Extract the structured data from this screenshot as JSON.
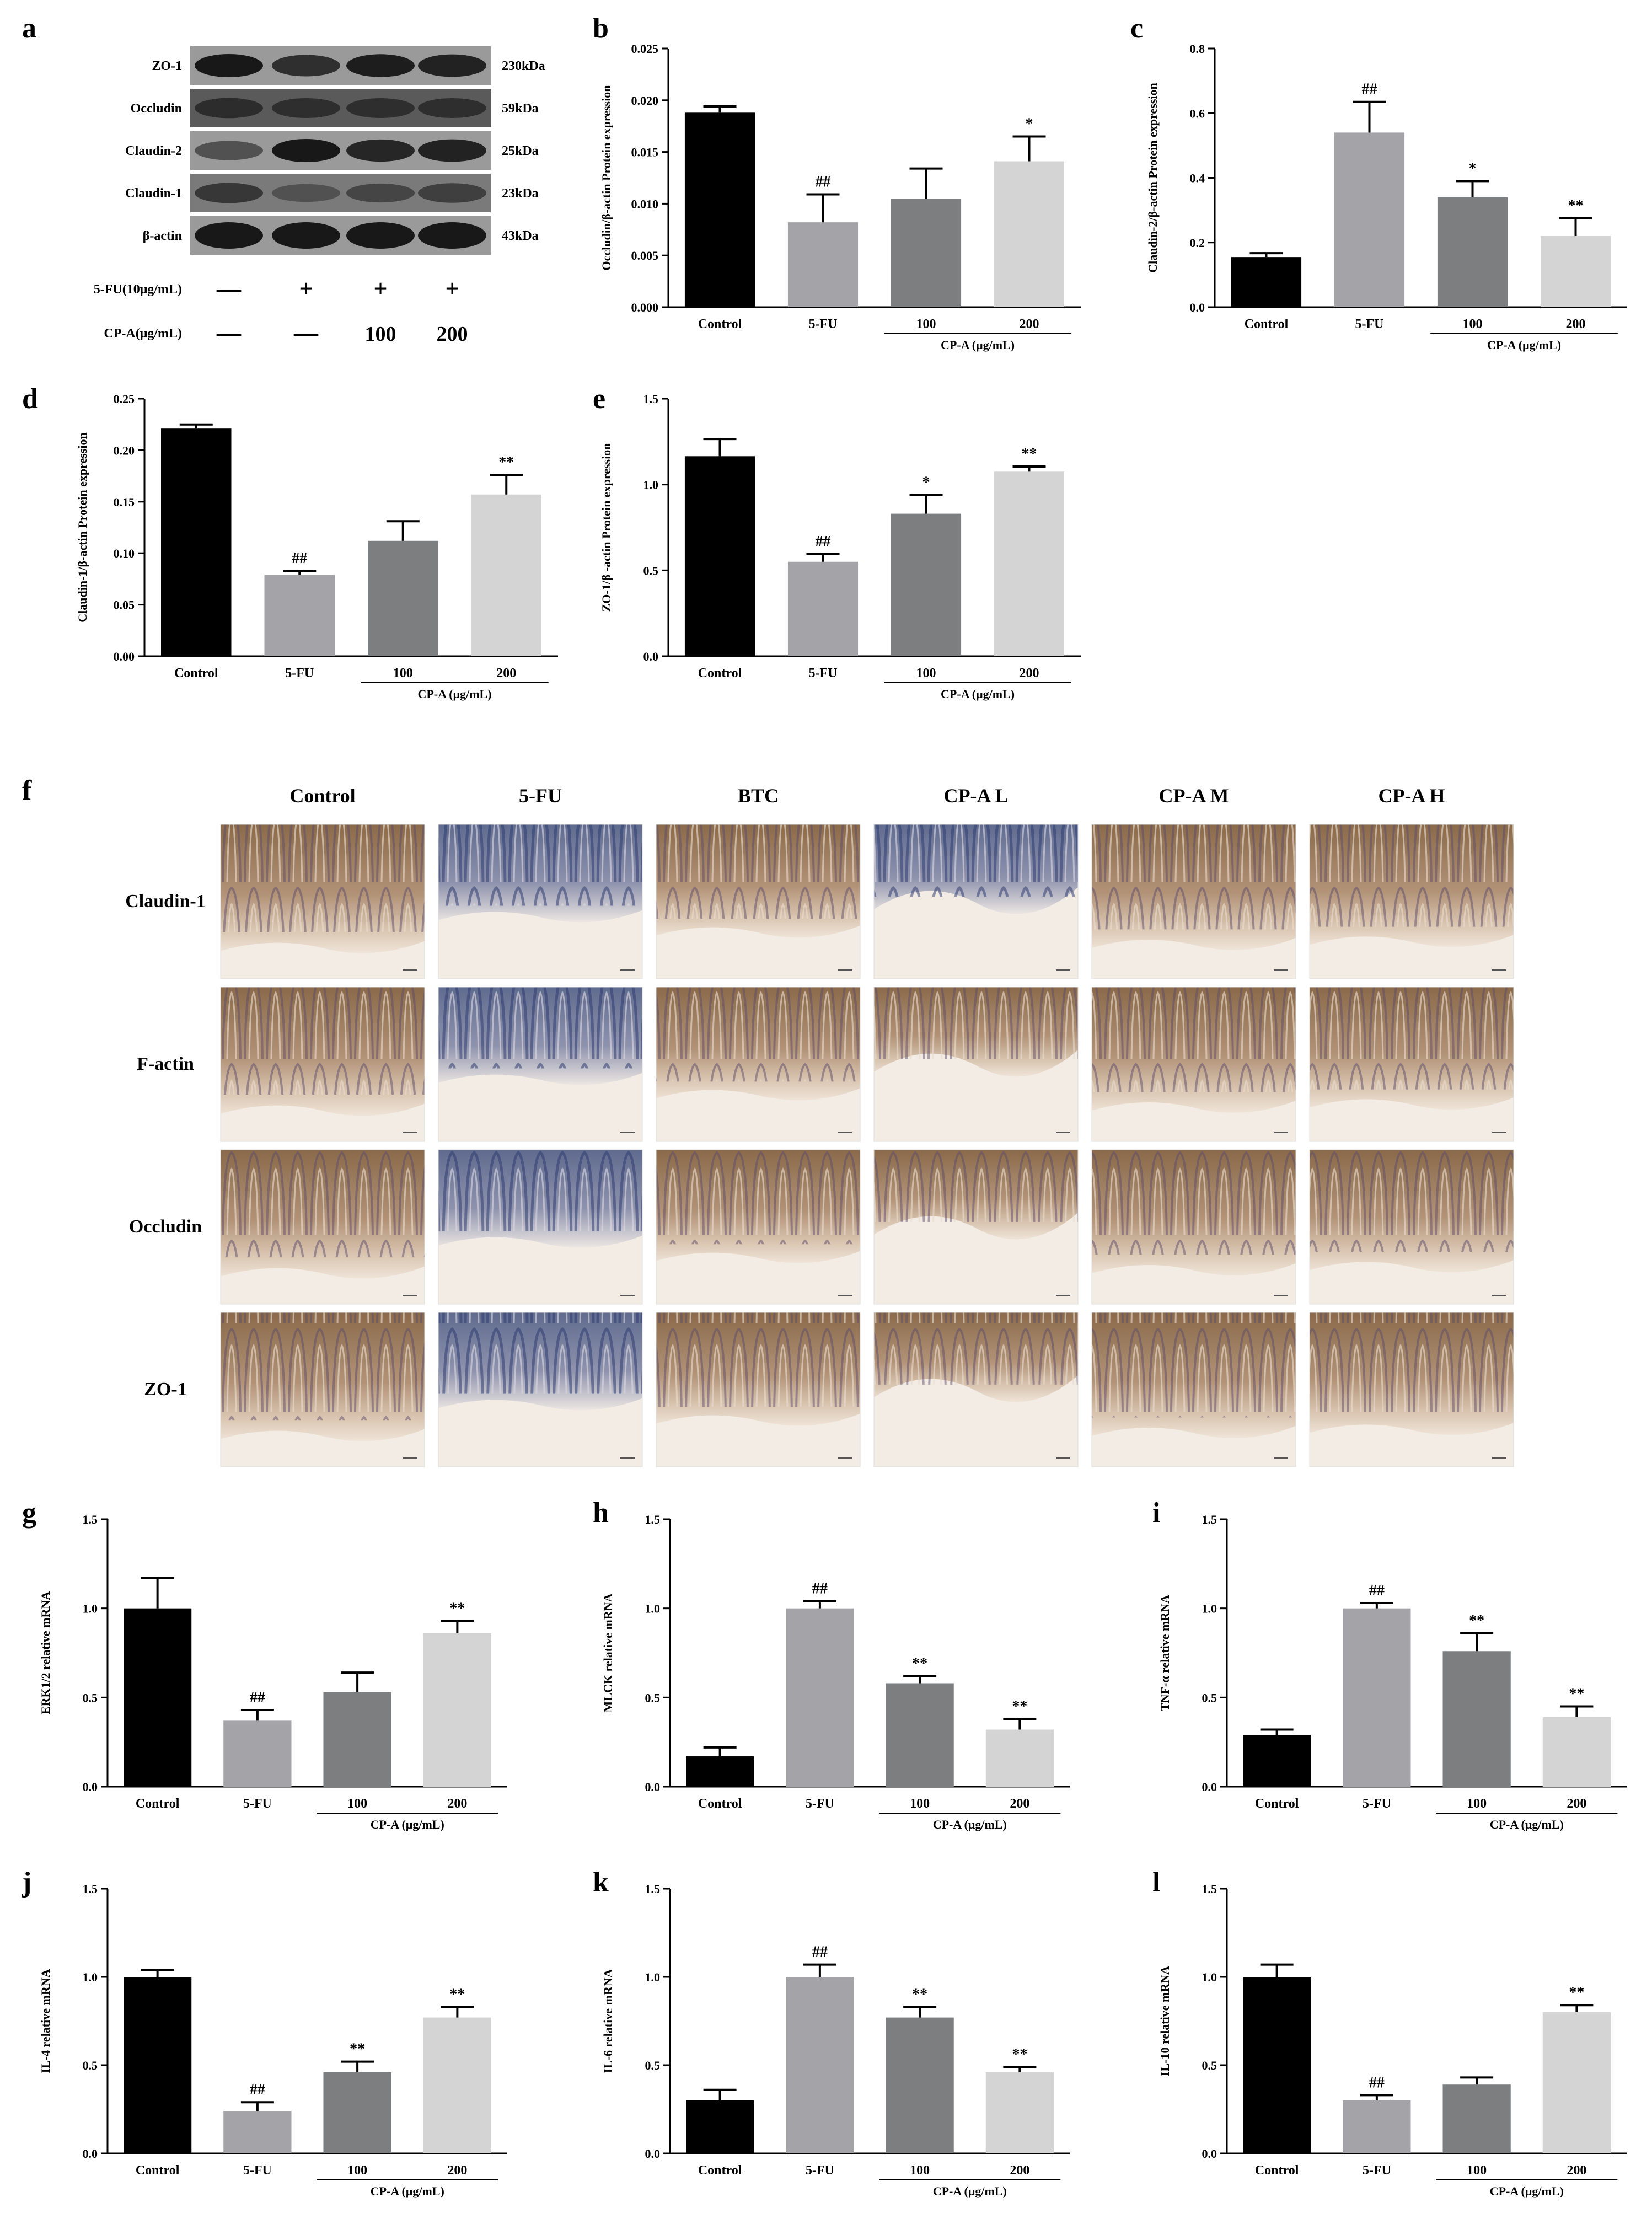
{
  "colors": {
    "control": "#000000",
    "fu": "#a4a3a7",
    "cp100": "#7c7e80",
    "cp200": "#d4d4d4"
  },
  "panel_a": {
    "letter": "a",
    "bands": [
      {
        "name": "ZO-1",
        "kda": "230kDa"
      },
      {
        "name": "Occludin",
        "kda": "59kDa"
      },
      {
        "name": "Claudin-2",
        "kda": "25kDa"
      },
      {
        "name": "Claudin-1",
        "kda": "23kDa"
      },
      {
        "name": "β-actin",
        "kda": "43kDa"
      }
    ],
    "treatment_rows": [
      {
        "label": "5-FU(10μg/mL)",
        "marks": [
          "—",
          "+",
          "+",
          "+"
        ]
      },
      {
        "label": "CP-A(μg/mL)",
        "marks": [
          "—",
          "—",
          "100",
          "200"
        ]
      }
    ]
  },
  "panel_f": {
    "letter": "f",
    "columns": [
      "Control",
      "5-FU",
      "BTC",
      "CP-A L",
      "CP-A M",
      "CP-A H"
    ],
    "rows": [
      "Claudin-1",
      "F-actin",
      "Occludin",
      "ZO-1"
    ]
  },
  "chart_data": [
    {
      "letter": "b",
      "type": "bar",
      "ylabel": "Occludin/β-actin Protein expression",
      "ylim": [
        0,
        0.025
      ],
      "ticks": [
        "0.000",
        "0.005",
        "0.010",
        "0.015",
        "0.020",
        "0.025"
      ],
      "categories": [
        "Control",
        "5-FU",
        "100",
        "200"
      ],
      "group_label": "CP-A (μg/mL)",
      "values": [
        0.0188,
        0.0082,
        0.0105,
        0.0141
      ],
      "errors": [
        0.0006,
        0.0027,
        0.0029,
        0.0024
      ],
      "sig": [
        "",
        "##",
        "",
        "*"
      ]
    },
    {
      "letter": "c",
      "type": "bar",
      "ylabel": "Claudin-2/β-actin Protein expression",
      "ylim": [
        0,
        0.8
      ],
      "ticks": [
        "0.0",
        "0.2",
        "0.4",
        "0.6",
        "0.8"
      ],
      "categories": [
        "Control",
        "5-FU",
        "100",
        "200"
      ],
      "group_label": "CP-A (μg/mL)",
      "values": [
        0.155,
        0.54,
        0.34,
        0.22
      ],
      "errors": [
        0.012,
        0.095,
        0.05,
        0.055
      ],
      "sig": [
        "",
        "##",
        "*",
        "**"
      ]
    },
    {
      "letter": "d",
      "type": "bar",
      "ylabel": "Claudin-1/β-actin Protein expression",
      "ylim": [
        0,
        0.25
      ],
      "ticks": [
        "0.00",
        "0.05",
        "0.10",
        "0.15",
        "0.20",
        "0.25"
      ],
      "categories": [
        "Control",
        "5-FU",
        "100",
        "200"
      ],
      "group_label": "CP-A (μg/mL)",
      "values": [
        0.221,
        0.079,
        0.112,
        0.157
      ],
      "errors": [
        0.004,
        0.004,
        0.019,
        0.019
      ],
      "sig": [
        "",
        "##",
        "",
        "**"
      ]
    },
    {
      "letter": "e",
      "type": "bar",
      "ylabel": "ZO-1/β -actin Protein expression",
      "ylim": [
        0,
        1.5
      ],
      "ticks": [
        "0.0",
        "0.5",
        "1.0",
        "1.5"
      ],
      "categories": [
        "Control",
        "5-FU",
        "100",
        "200"
      ],
      "group_label": "CP-A (μg/mL)",
      "values": [
        1.165,
        0.55,
        0.83,
        1.075
      ],
      "errors": [
        0.1,
        0.045,
        0.11,
        0.03
      ],
      "sig": [
        "",
        "##",
        "*",
        "**"
      ]
    },
    {
      "letter": "g",
      "type": "bar",
      "ylabel": "ERK1/2 relative mRNA",
      "ylim": [
        0,
        1.5
      ],
      "ticks": [
        "0.0",
        "0.5",
        "1.0",
        "1.5"
      ],
      "categories": [
        "Control",
        "5-FU",
        "100",
        "200"
      ],
      "group_label": "CP-A (μg/mL)",
      "values": [
        1.0,
        0.37,
        0.53,
        0.86
      ],
      "errors": [
        0.17,
        0.06,
        0.11,
        0.07
      ],
      "sig": [
        "",
        "##",
        "",
        "**"
      ]
    },
    {
      "letter": "h",
      "type": "bar",
      "ylabel": "MLCK relative mRNA",
      "ylim": [
        0,
        1.5
      ],
      "ticks": [
        "0.0",
        "0.5",
        "1.0",
        "1.5"
      ],
      "categories": [
        "Control",
        "5-FU",
        "100",
        "200"
      ],
      "group_label": "CP-A (μg/mL)",
      "values": [
        0.17,
        1.0,
        0.58,
        0.32
      ],
      "errors": [
        0.05,
        0.04,
        0.04,
        0.06
      ],
      "sig": [
        "",
        "##",
        "**",
        "**"
      ]
    },
    {
      "letter": "i",
      "type": "bar",
      "ylabel": "TNF-α relative mRNA",
      "ylim": [
        0,
        1.5
      ],
      "ticks": [
        "0.0",
        "0.5",
        "1.0",
        "1.5"
      ],
      "categories": [
        "Control",
        "5-FU",
        "100",
        "200"
      ],
      "group_label": "CP-A (μg/mL)",
      "values": [
        0.29,
        1.0,
        0.76,
        0.39
      ],
      "errors": [
        0.03,
        0.03,
        0.1,
        0.06
      ],
      "sig": [
        "",
        "##",
        "**",
        "**"
      ]
    },
    {
      "letter": "j",
      "type": "bar",
      "ylabel": "IL-4 relative mRNA",
      "ylim": [
        0,
        1.5
      ],
      "ticks": [
        "0.0",
        "0.5",
        "1.0",
        "1.5"
      ],
      "categories": [
        "Control",
        "5-FU",
        "100",
        "200"
      ],
      "group_label": "CP-A (μg/mL)",
      "values": [
        1.0,
        0.24,
        0.46,
        0.77
      ],
      "errors": [
        0.04,
        0.05,
        0.06,
        0.06
      ],
      "sig": [
        "",
        "##",
        "**",
        "**"
      ]
    },
    {
      "letter": "k",
      "type": "bar",
      "ylabel": "IL-6 relative mRNA",
      "ylim": [
        0,
        1.5
      ],
      "ticks": [
        "0.0",
        "0.5",
        "1.0",
        "1.5"
      ],
      "categories": [
        "Control",
        "5-FU",
        "100",
        "200"
      ],
      "group_label": "CP-A (μg/mL)",
      "values": [
        0.3,
        1.0,
        0.77,
        0.46
      ],
      "errors": [
        0.06,
        0.07,
        0.06,
        0.03
      ],
      "sig": [
        "",
        "##",
        "**",
        "**"
      ]
    },
    {
      "letter": "l",
      "type": "bar",
      "ylabel": "IL-10 relative mRNA",
      "ylim": [
        0,
        1.5
      ],
      "ticks": [
        "0.0",
        "0.5",
        "1.0",
        "1.5"
      ],
      "categories": [
        "Control",
        "5-FU",
        "100",
        "200"
      ],
      "group_label": "CP-A (μg/mL)",
      "values": [
        1.0,
        0.3,
        0.39,
        0.8
      ],
      "errors": [
        0.07,
        0.03,
        0.04,
        0.04
      ],
      "sig": [
        "",
        "##",
        "",
        "**"
      ]
    }
  ]
}
